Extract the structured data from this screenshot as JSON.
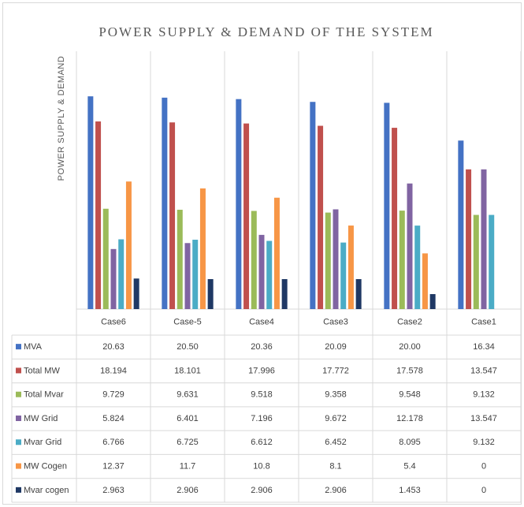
{
  "chart_data": {
    "type": "bar",
    "title": "POWER SUPPLY & DEMAND OF THE SYSTEM",
    "y_label": "POWER SUPPLY & DEMAND",
    "categories": [
      "Case6",
      "Case-5",
      "Case4",
      "Case3",
      "Case2",
      "Case1"
    ],
    "ylim": [
      0,
      25
    ],
    "grid": true,
    "series": [
      {
        "name": "MVA",
        "color": "#4472c4",
        "values": [
          20.63,
          20.5,
          20.36,
          20.09,
          20,
          16.34
        ],
        "value_labels": [
          "20.63",
          "20.50",
          "20.36",
          "20.09",
          "20.00",
          "16.34"
        ]
      },
      {
        "name": "Total MW",
        "color": "#c0504d",
        "values": [
          18.194,
          18.101,
          17.996,
          17.772,
          17.578,
          13.547
        ]
      },
      {
        "name": "Total Mvar",
        "color": "#9bbb59",
        "values": [
          9.729,
          9.631,
          9.518,
          9.358,
          9.548,
          9.132
        ]
      },
      {
        "name": "MW Grid",
        "color": "#8064a2",
        "values": [
          5.824,
          6.401,
          7.196,
          9.672,
          12.178,
          13.547
        ]
      },
      {
        "name": "Mvar Grid",
        "color": "#4bacc6",
        "values": [
          6.766,
          6.725,
          6.612,
          6.452,
          8.095,
          9.132
        ]
      },
      {
        "name": "MW Cogen",
        "color": "#f79646",
        "values": [
          12.37,
          11.7,
          10.8,
          8.1,
          5.4,
          0
        ]
      },
      {
        "name": "Mvar cogen",
        "color": "#1f3864",
        "values": [
          2.963,
          2.906,
          2.906,
          2.906,
          1.453,
          0
        ]
      }
    ]
  }
}
